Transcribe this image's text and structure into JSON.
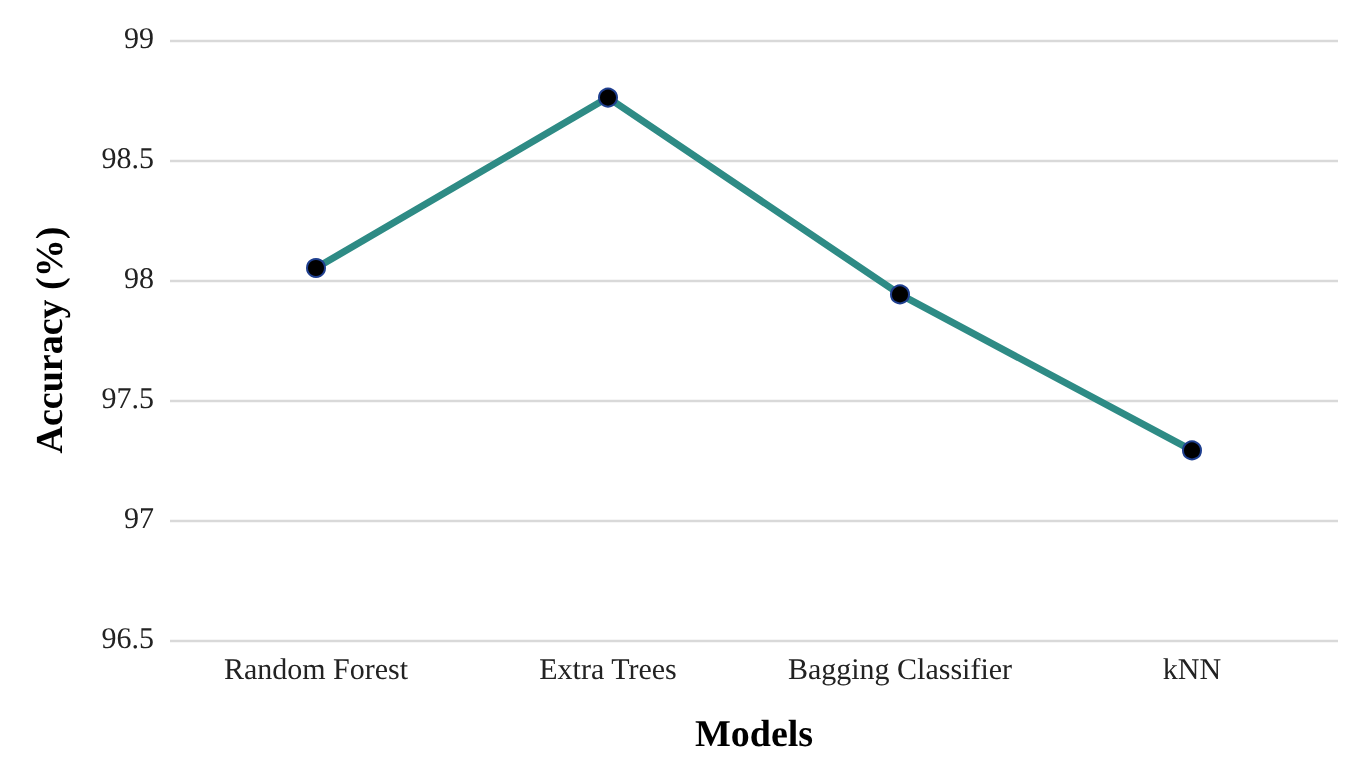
{
  "chart_data": {
    "type": "line",
    "xlabel": "Models",
    "ylabel": "Accuracy (%)",
    "categories": [
      "Random Forest",
      "Extra Trees",
      "Bagging Classifier",
      "kNN"
    ],
    "series": [
      {
        "color": "#2e8b85",
        "values": [
          98.05,
          98.76,
          97.94,
          97.29
        ]
      }
    ],
    "ylim": [
      96.5,
      99
    ],
    "yticks": [
      96.5,
      97,
      97.5,
      98,
      98.5,
      99
    ],
    "grid": "y",
    "marker": "circle",
    "line_style": "solid"
  }
}
